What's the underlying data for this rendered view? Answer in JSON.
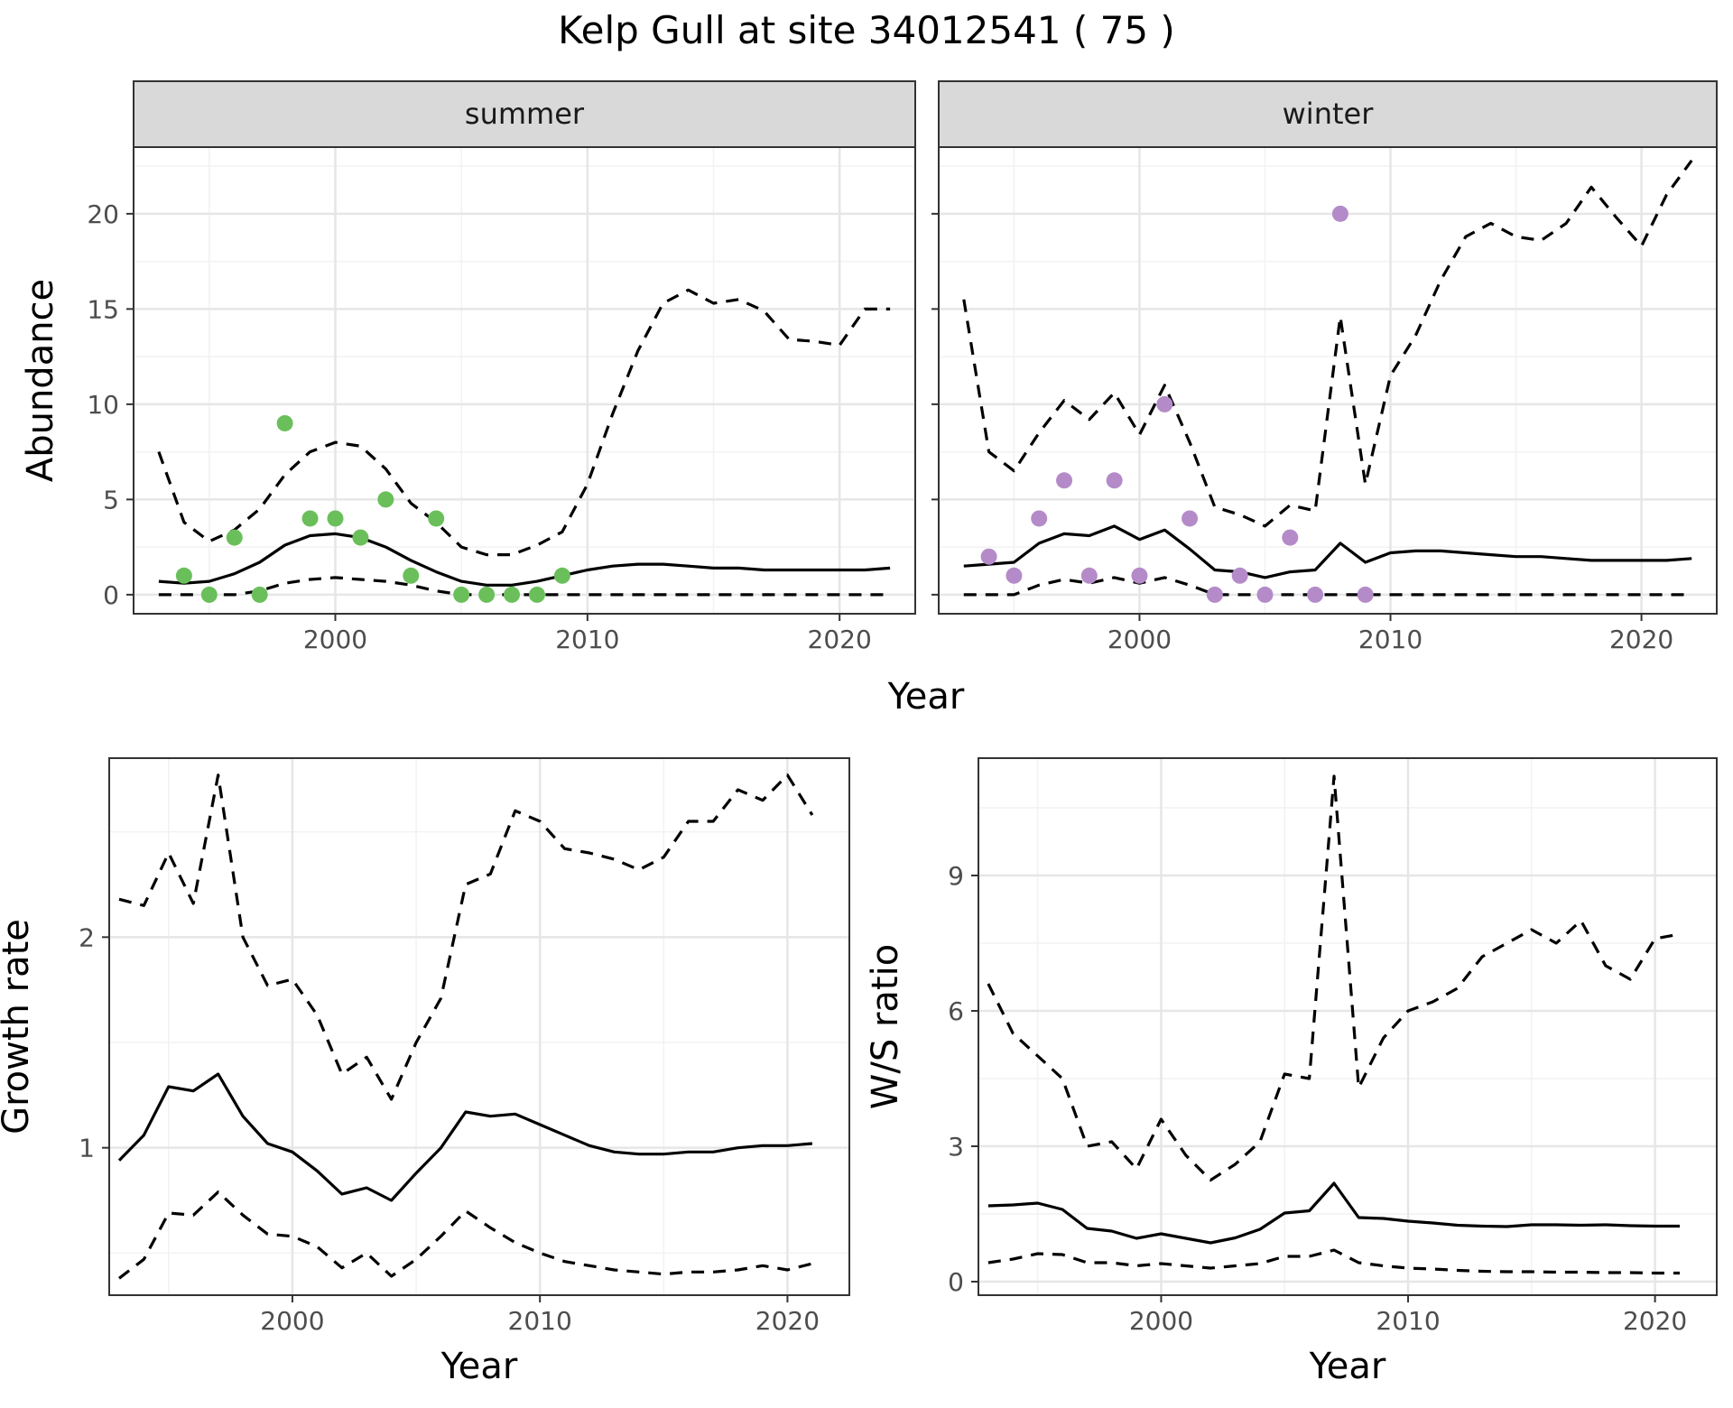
{
  "title": "Kelp Gull at site 34012541 ( 75 )",
  "colors": {
    "summer": "#6abf5a",
    "winter": "#b48bc8",
    "line": "#000000",
    "grid_major": "#e6e6e6",
    "grid_minor": "#f2f2f2",
    "strip": "#d9d9d9"
  },
  "chart_data": [
    {
      "type": "line",
      "facet": "summer",
      "strip_label": "summer",
      "xlabel": "Year",
      "ylabel": "Abundance",
      "xlim": [
        1992,
        2023
      ],
      "ylim": [
        -1,
        23.5
      ],
      "xticks": [
        2000,
        2010,
        2020
      ],
      "yticks": [
        0,
        5,
        10,
        15,
        20
      ],
      "x": [
        1993,
        1994,
        1995,
        1996,
        1997,
        1998,
        1999,
        2000,
        2001,
        2002,
        2003,
        2004,
        2005,
        2006,
        2007,
        2008,
        2009,
        2010,
        2011,
        2012,
        2013,
        2014,
        2015,
        2016,
        2017,
        2018,
        2019,
        2020,
        2021,
        2022
      ],
      "series": [
        {
          "role": "mean",
          "style": "solid",
          "values": [
            0.7,
            0.6,
            0.7,
            1.1,
            1.7,
            2.6,
            3.1,
            3.2,
            3.0,
            2.5,
            1.8,
            1.2,
            0.7,
            0.5,
            0.5,
            0.7,
            1.0,
            1.3,
            1.5,
            1.6,
            1.6,
            1.5,
            1.4,
            1.4,
            1.3,
            1.3,
            1.3,
            1.3,
            1.3,
            1.4
          ]
        },
        {
          "role": "upper",
          "style": "dashed",
          "values": [
            7.5,
            3.8,
            2.8,
            3.4,
            4.5,
            6.3,
            7.5,
            8.0,
            7.8,
            6.6,
            4.8,
            3.8,
            2.5,
            2.1,
            2.1,
            2.6,
            3.3,
            5.8,
            9.5,
            12.8,
            15.3,
            16.0,
            15.3,
            15.5,
            14.9,
            13.4,
            13.3,
            13.1,
            15.0,
            15.0
          ]
        },
        {
          "role": "lower",
          "style": "dashed",
          "values": [
            0,
            0,
            0,
            0,
            0.2,
            0.6,
            0.8,
            0.9,
            0.8,
            0.7,
            0.5,
            0.2,
            0,
            0,
            0,
            0,
            0,
            0,
            0,
            0,
            0,
            0,
            0,
            0,
            0,
            0,
            0,
            0,
            0,
            0
          ]
        }
      ],
      "points": {
        "x": [
          1994,
          1995,
          1996,
          1997,
          1998,
          1999,
          2000,
          2001,
          2002,
          2003,
          2004,
          2005,
          2006,
          2007,
          2008,
          2009
        ],
        "y": [
          1,
          0,
          3,
          0,
          9,
          4,
          4,
          3,
          5,
          1,
          4,
          0,
          0,
          0,
          0,
          1
        ]
      }
    },
    {
      "type": "line",
      "facet": "winter",
      "strip_label": "winter",
      "xlabel": "Year",
      "ylabel": "",
      "xlim": [
        1992,
        2023
      ],
      "ylim": [
        -1,
        23.5
      ],
      "xticks": [
        2000,
        2010,
        2020
      ],
      "yticks": [
        0,
        5,
        10,
        15,
        20
      ],
      "x": [
        1993,
        1994,
        1995,
        1996,
        1997,
        1998,
        1999,
        2000,
        2001,
        2002,
        2003,
        2004,
        2005,
        2006,
        2007,
        2008,
        2009,
        2010,
        2011,
        2012,
        2013,
        2014,
        2015,
        2016,
        2017,
        2018,
        2019,
        2020,
        2021,
        2022
      ],
      "series": [
        {
          "role": "mean",
          "style": "solid",
          "values": [
            1.5,
            1.6,
            1.7,
            2.7,
            3.2,
            3.1,
            3.6,
            2.9,
            3.4,
            2.4,
            1.3,
            1.2,
            0.9,
            1.2,
            1.3,
            2.7,
            1.7,
            2.2,
            2.3,
            2.3,
            2.2,
            2.1,
            2.0,
            2.0,
            1.9,
            1.8,
            1.8,
            1.8,
            1.8,
            1.9
          ]
        },
        {
          "role": "upper",
          "style": "dashed",
          "values": [
            15.5,
            7.5,
            6.5,
            8.5,
            10.2,
            9.2,
            10.6,
            8.4,
            11.0,
            8.0,
            4.6,
            4.2,
            3.6,
            4.7,
            4.4,
            14.6,
            5.8,
            11.5,
            13.6,
            16.5,
            18.8,
            19.5,
            18.8,
            18.6,
            19.5,
            21.4,
            19.8,
            18.3,
            21.0,
            22.8
          ]
        },
        {
          "role": "lower",
          "style": "dashed",
          "values": [
            0,
            0,
            0,
            0.5,
            0.8,
            0.6,
            0.9,
            0.6,
            0.9,
            0.5,
            0,
            0,
            0,
            0,
            0,
            0,
            0,
            0,
            0,
            0,
            0,
            0,
            0,
            0,
            0,
            0,
            0,
            0,
            0,
            0
          ]
        }
      ],
      "points": {
        "x": [
          1994,
          1995,
          1996,
          1997,
          1998,
          1999,
          2000,
          2001,
          2002,
          2003,
          2004,
          2005,
          2006,
          2007,
          2008,
          2009
        ],
        "y": [
          2,
          1,
          4,
          6,
          1,
          6,
          1,
          10,
          4,
          0,
          1,
          0,
          3,
          0,
          20,
          0
        ]
      }
    },
    {
      "type": "line",
      "facet": "growth",
      "xlabel": "Year",
      "ylabel": "Growth rate",
      "xlim": [
        1992.6,
        2022.5
      ],
      "ylim": [
        0.3,
        2.85
      ],
      "xticks": [
        2000,
        2010,
        2020
      ],
      "yticks": [
        1,
        2
      ],
      "x": [
        1993,
        1994,
        1995,
        1996,
        1997,
        1998,
        1999,
        2000,
        2001,
        2002,
        2003,
        2004,
        2005,
        2006,
        2007,
        2008,
        2009,
        2010,
        2011,
        2012,
        2013,
        2014,
        2015,
        2016,
        2017,
        2018,
        2019,
        2020,
        2021
      ],
      "series": [
        {
          "role": "mean",
          "style": "solid",
          "values": [
            0.94,
            1.06,
            1.29,
            1.27,
            1.35,
            1.15,
            1.02,
            0.98,
            0.89,
            0.78,
            0.81,
            0.75,
            0.88,
            1.0,
            1.17,
            1.15,
            1.16,
            1.11,
            1.06,
            1.01,
            0.98,
            0.97,
            0.97,
            0.98,
            0.98,
            1.0,
            1.01,
            1.01,
            1.02
          ]
        },
        {
          "role": "upper",
          "style": "dashed",
          "values": [
            2.18,
            2.15,
            2.4,
            2.16,
            2.77,
            2.0,
            1.77,
            1.8,
            1.63,
            1.35,
            1.43,
            1.23,
            1.5,
            1.71,
            2.25,
            2.3,
            2.6,
            2.55,
            2.42,
            2.4,
            2.37,
            2.32,
            2.38,
            2.55,
            2.55,
            2.7,
            2.65,
            2.77,
            2.58
          ]
        },
        {
          "role": "lower",
          "style": "dashed",
          "values": [
            0.38,
            0.47,
            0.69,
            0.68,
            0.79,
            0.68,
            0.59,
            0.58,
            0.53,
            0.43,
            0.5,
            0.39,
            0.47,
            0.58,
            0.7,
            0.62,
            0.55,
            0.5,
            0.46,
            0.44,
            0.42,
            0.41,
            0.4,
            0.41,
            0.41,
            0.42,
            0.44,
            0.42,
            0.45
          ]
        }
      ]
    },
    {
      "type": "line",
      "facet": "ratio",
      "xlabel": "Year",
      "ylabel": "W/S ratio",
      "xlim": [
        1992.6,
        2022.5
      ],
      "ylim": [
        -0.3,
        11.6
      ],
      "xticks": [
        2000,
        2010,
        2020
      ],
      "yticks": [
        0,
        3,
        6,
        9
      ],
      "x": [
        1993,
        1994,
        1995,
        1996,
        1997,
        1998,
        1999,
        2000,
        2001,
        2002,
        2003,
        2004,
        2005,
        2006,
        2007,
        2008,
        2009,
        2010,
        2011,
        2012,
        2013,
        2014,
        2015,
        2016,
        2017,
        2018,
        2019,
        2020,
        2021
      ],
      "series": [
        {
          "role": "mean",
          "style": "solid",
          "values": [
            1.68,
            1.7,
            1.74,
            1.6,
            1.18,
            1.12,
            0.96,
            1.06,
            0.96,
            0.86,
            0.97,
            1.16,
            1.52,
            1.57,
            2.18,
            1.42,
            1.4,
            1.34,
            1.3,
            1.25,
            1.23,
            1.22,
            1.26,
            1.26,
            1.25,
            1.26,
            1.24,
            1.23,
            1.23
          ]
        },
        {
          "role": "upper",
          "style": "dashed",
          "values": [
            6.6,
            5.5,
            5.0,
            4.5,
            3.0,
            3.1,
            2.5,
            3.6,
            2.8,
            2.25,
            2.6,
            3.1,
            4.6,
            4.5,
            11.2,
            4.3,
            5.4,
            6.0,
            6.2,
            6.5,
            7.2,
            7.5,
            7.8,
            7.5,
            8.0,
            7.0,
            6.7,
            7.6,
            7.7
          ]
        },
        {
          "role": "lower",
          "style": "dashed",
          "values": [
            0.42,
            0.5,
            0.62,
            0.6,
            0.42,
            0.42,
            0.35,
            0.4,
            0.35,
            0.3,
            0.35,
            0.4,
            0.56,
            0.56,
            0.7,
            0.42,
            0.35,
            0.3,
            0.28,
            0.25,
            0.23,
            0.22,
            0.22,
            0.21,
            0.21,
            0.2,
            0.2,
            0.19,
            0.19
          ]
        }
      ]
    }
  ]
}
